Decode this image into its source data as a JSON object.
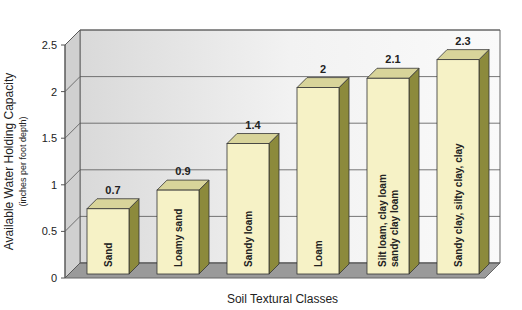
{
  "chart_data": {
    "type": "bar",
    "y_label": "Available Water Holding Capacity",
    "y_sublabel": "(inches per foot depth)",
    "x_label": "Soil Textural Classes",
    "categories": [
      "Sand",
      "Loamy sand",
      "Sandy loam",
      "Loam",
      "Silt loam, clay loam\nsandy clay loam",
      "Sandy clay, silty clay, clay"
    ],
    "values": [
      0.7,
      0.9,
      1.4,
      2,
      2.1,
      2.3
    ],
    "color": "#f6f2c6",
    "ylim": [
      0,
      2.5
    ],
    "yticks": [
      0,
      0.5,
      1,
      1.5,
      2,
      2.5
    ],
    "grid": true,
    "data_labels": true
  }
}
